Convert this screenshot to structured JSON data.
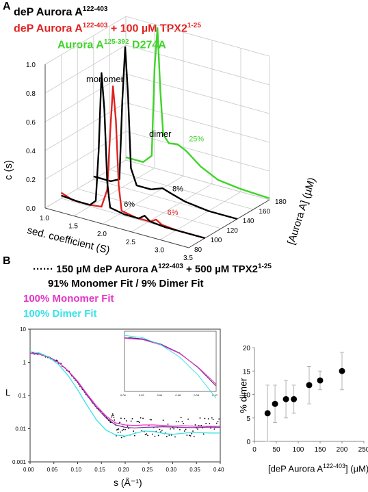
{
  "panel_a": {
    "letter": "A",
    "legend": [
      {
        "text": "deP Aurora A",
        "sup": "122-403",
        "suffix": "",
        "color": "#000000"
      },
      {
        "text": "deP Aurora A",
        "sup": "122-403",
        "suffix": " + 100 µM TPX2",
        "sup2": "1-25",
        "color": "#e0211f"
      },
      {
        "text": "Aurora A",
        "sup": "125-392",
        "suffix": " D274A",
        "color": "#3fd42a"
      }
    ],
    "annotations": {
      "monomer": "monomer",
      "dimer": "dimer"
    }
  },
  "panel_b": {
    "letter": "B",
    "legend": [
      {
        "prefix": "······",
        "text": "150 µM deP Aurora A",
        "sup": "122-403",
        "suffix": " + 500 µM TPX2",
        "sup2": "1-25",
        "color": "#000000"
      },
      {
        "text": "91% Monomer Fit  /  9% Dimer Fit",
        "color": "#000000"
      },
      {
        "text": "100%  Monomer Fit",
        "color": "#e733c5"
      },
      {
        "text": "100%  Dimer Fit",
        "color": "#36e3e8"
      }
    ]
  },
  "chart_data": [
    {
      "type": "line",
      "projection": "3d",
      "xlabel": "sed. coefficient (S)",
      "ylabel": "c (s)",
      "zlabel": "[Aurora A] (µM)",
      "x_ticks": [
        "1.0",
        "1.5",
        "2.0",
        "2.5",
        "3.0",
        "3.5"
      ],
      "y_ticks": [
        "0.0",
        "0.2",
        "0.4",
        "0.6",
        "0.8",
        "1.0"
      ],
      "z_ticks": [
        "80",
        "100",
        "120",
        "140",
        "160",
        "180"
      ],
      "xlim": [
        1.0,
        3.5
      ],
      "ylim": [
        0,
        1.0
      ],
      "zlim": [
        80,
        180
      ],
      "grid": true,
      "series": [
        {
          "color": "#e0211f",
          "z": 100,
          "points": [
            [
              1.0,
              0.04
            ],
            [
              1.2,
              0.01
            ],
            [
              1.5,
              0.01
            ],
            [
              1.7,
              0.02
            ],
            [
              1.8,
              0.15
            ],
            [
              1.85,
              0.55
            ],
            [
              1.9,
              0.88
            ],
            [
              1.95,
              0.65
            ],
            [
              2.0,
              0.2
            ],
            [
              2.05,
              0.03
            ],
            [
              2.3,
              0.01
            ],
            [
              2.55,
              0.01
            ],
            [
              2.65,
              0.035
            ],
            [
              2.75,
              0.01
            ],
            [
              3.0,
              0.0
            ],
            [
              3.5,
              0.0
            ]
          ],
          "label": "6%",
          "label_color": "#e0211f"
        },
        {
          "color": "#000000",
          "z": 100,
          "points": [
            [
              1.0,
              0.02
            ],
            [
              1.3,
              0.01
            ],
            [
              1.5,
              0.01
            ],
            [
              1.6,
              0.05
            ],
            [
              1.65,
              0.4
            ],
            [
              1.7,
              0.95
            ],
            [
              1.75,
              0.7
            ],
            [
              1.8,
              0.2
            ],
            [
              1.85,
              0.03
            ],
            [
              2.1,
              0.01
            ],
            [
              2.35,
              0.01
            ],
            [
              2.45,
              0.04
            ],
            [
              2.55,
              0.01
            ],
            [
              2.8,
              0.0
            ],
            [
              3.5,
              0.0
            ]
          ],
          "label": "6%",
          "label_color": "#000000"
        },
        {
          "color": "#000000",
          "z": 140,
          "points": [
            [
              1.0,
              0.02
            ],
            [
              1.3,
              0.02
            ],
            [
              1.45,
              0.05
            ],
            [
              1.5,
              0.6
            ],
            [
              1.55,
              0.98
            ],
            [
              1.6,
              0.65
            ],
            [
              1.65,
              0.15
            ],
            [
              1.75,
              0.04
            ],
            [
              2.0,
              0.04
            ],
            [
              2.2,
              0.07
            ],
            [
              2.35,
              0.05
            ],
            [
              2.6,
              0.02
            ],
            [
              3.0,
              0.0
            ],
            [
              3.5,
              0.0
            ]
          ],
          "label": "8%",
          "label_color": "#000000"
        },
        {
          "color": "#3fd42a",
          "z": 180,
          "points": [
            [
              1.0,
              0.02
            ],
            [
              1.3,
              0.02
            ],
            [
              1.45,
              0.08
            ],
            [
              1.5,
              0.7
            ],
            [
              1.55,
              0.98
            ],
            [
              1.6,
              0.55
            ],
            [
              1.65,
              0.25
            ],
            [
              1.75,
              0.2
            ],
            [
              1.9,
              0.21
            ],
            [
              2.05,
              0.18
            ],
            [
              2.3,
              0.1
            ],
            [
              2.6,
              0.04
            ],
            [
              3.0,
              0.02
            ],
            [
              3.5,
              0.01
            ]
          ],
          "label": "25%",
          "label_color": "#3fd42a"
        }
      ]
    },
    {
      "type": "line",
      "xlabel": "s (Å⁻¹)",
      "ylabel": "L",
      "yscale": "log",
      "xlim": [
        0.0,
        0.4
      ],
      "ylim": [
        0.001,
        10
      ],
      "x_ticks": [
        "0.00",
        "0.05",
        "0.10",
        "0.15",
        "0.20",
        "0.25",
        "0.30",
        "0.35",
        "0.40"
      ],
      "y_ticks": [
        "0.001",
        "0.01",
        "0.1",
        "1",
        "10"
      ],
      "series": [
        {
          "name": "data",
          "style": "dots",
          "color": "#000000",
          "points": [
            [
              0.005,
              1.9
            ],
            [
              0.02,
              1.8
            ],
            [
              0.04,
              1.4
            ],
            [
              0.06,
              1.0
            ],
            [
              0.08,
              0.55
            ],
            [
              0.1,
              0.25
            ],
            [
              0.12,
              0.1
            ],
            [
              0.14,
              0.045
            ],
            [
              0.16,
              0.022
            ],
            [
              0.17,
              0.016
            ],
            [
              0.18,
              0.012
            ],
            [
              0.19,
              0.011
            ],
            [
              0.2,
              0.01
            ],
            [
              0.22,
              0.012
            ],
            [
              0.24,
              0.013
            ],
            [
              0.26,
              0.011
            ],
            [
              0.28,
              0.012
            ],
            [
              0.3,
              0.011
            ],
            [
              0.32,
              0.012
            ],
            [
              0.34,
              0.011
            ],
            [
              0.36,
              0.012
            ],
            [
              0.38,
              0.011
            ],
            [
              0.4,
              0.011
            ]
          ]
        },
        {
          "name": "fit",
          "style": "line",
          "color": "#7a2f9a",
          "points": [
            [
              0.0,
              1.9
            ],
            [
              0.02,
              1.8
            ],
            [
              0.04,
              1.45
            ],
            [
              0.06,
              1.0
            ],
            [
              0.08,
              0.55
            ],
            [
              0.1,
              0.25
            ],
            [
              0.12,
              0.1
            ],
            [
              0.14,
              0.043
            ],
            [
              0.16,
              0.021
            ],
            [
              0.18,
              0.013
            ],
            [
              0.2,
              0.011
            ],
            [
              0.22,
              0.0105
            ],
            [
              0.24,
              0.011
            ],
            [
              0.26,
              0.0112
            ],
            [
              0.28,
              0.0115
            ],
            [
              0.3,
              0.0112
            ],
            [
              0.32,
              0.011
            ],
            [
              0.34,
              0.0108
            ],
            [
              0.36,
              0.011
            ],
            [
              0.38,
              0.0112
            ],
            [
              0.4,
              0.011
            ]
          ]
        },
        {
          "name": "100% Monomer Fit",
          "style": "line",
          "color": "#e733c5",
          "points": [
            [
              0.0,
              1.85
            ],
            [
              0.02,
              1.75
            ],
            [
              0.04,
              1.4
            ],
            [
              0.06,
              0.98
            ],
            [
              0.08,
              0.56
            ],
            [
              0.1,
              0.27
            ],
            [
              0.12,
              0.11
            ],
            [
              0.14,
              0.048
            ],
            [
              0.16,
              0.024
            ],
            [
              0.18,
              0.015
            ],
            [
              0.2,
              0.013
            ],
            [
              0.22,
              0.0125
            ],
            [
              0.24,
              0.013
            ],
            [
              0.26,
              0.013
            ],
            [
              0.28,
              0.0125
            ],
            [
              0.3,
              0.012
            ],
            [
              0.32,
              0.0122
            ],
            [
              0.34,
              0.012
            ],
            [
              0.36,
              0.0118
            ],
            [
              0.38,
              0.0118
            ],
            [
              0.4,
              0.0118
            ]
          ]
        },
        {
          "name": "100% Dimer Fit",
          "style": "line",
          "color": "#36e3e8",
          "points": [
            [
              0.0,
              2.1
            ],
            [
              0.02,
              1.9
            ],
            [
              0.04,
              1.4
            ],
            [
              0.06,
              0.85
            ],
            [
              0.08,
              0.4
            ],
            [
              0.1,
              0.15
            ],
            [
              0.12,
              0.05
            ],
            [
              0.14,
              0.018
            ],
            [
              0.16,
              0.009
            ],
            [
              0.18,
              0.0065
            ],
            [
              0.2,
              0.006
            ],
            [
              0.22,
              0.0072
            ],
            [
              0.24,
              0.0085
            ],
            [
              0.26,
              0.0082
            ],
            [
              0.28,
              0.0072
            ],
            [
              0.3,
              0.0068
            ],
            [
              0.32,
              0.0072
            ],
            [
              0.34,
              0.0078
            ],
            [
              0.36,
              0.0076
            ],
            [
              0.38,
              0.0074
            ],
            [
              0.4,
              0.0074
            ]
          ]
        }
      ],
      "inset": {
        "xlim": [
          0.0,
          0.1
        ],
        "x_ticks": [
          "0.00",
          "0.02",
          "0.04",
          "0.06",
          "0.08",
          "0.10"
        ],
        "yscale": "log",
        "ylim": [
          0.2,
          2.5
        ]
      }
    },
    {
      "type": "scatter",
      "xlabel": "[deP Aurora A",
      "xlabel_sup": "122-403",
      "xlabel_suffix": "] (µM)",
      "ylabel": "% dimer",
      "xlim": [
        0,
        250
      ],
      "ylim": [
        0,
        20
      ],
      "x_ticks": [
        "0",
        "50",
        "100",
        "150",
        "200",
        "250"
      ],
      "y_ticks": [
        "0",
        "5",
        "10",
        "15",
        "20"
      ],
      "grid": false,
      "points": [
        {
          "x": 30,
          "y": 6,
          "err": 6
        },
        {
          "x": 47,
          "y": 8,
          "err": 4
        },
        {
          "x": 72,
          "y": 9,
          "err": 4
        },
        {
          "x": 90,
          "y": 9,
          "err": 3
        },
        {
          "x": 125,
          "y": 12,
          "err": 4
        },
        {
          "x": 150,
          "y": 13,
          "err": 2
        },
        {
          "x": 200,
          "y": 15,
          "err": 4
        }
      ]
    }
  ]
}
